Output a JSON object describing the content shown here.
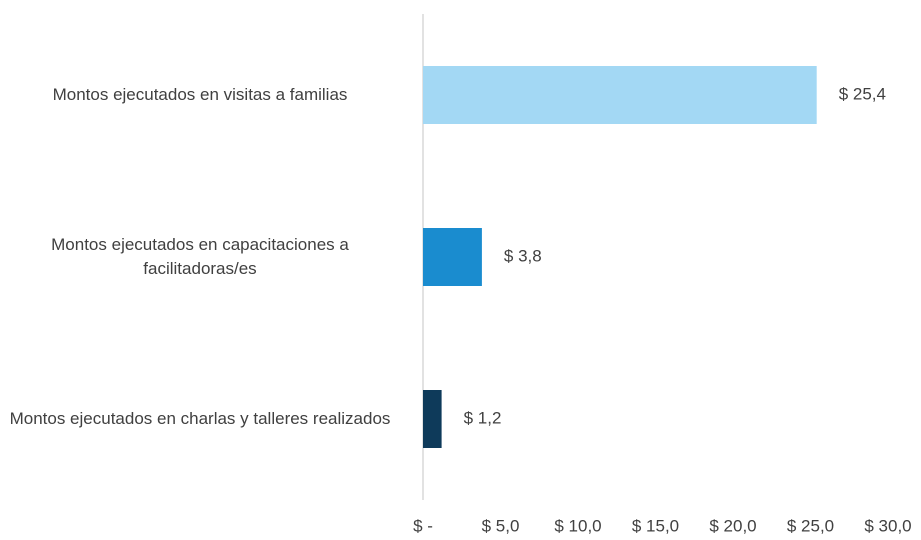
{
  "chart_data": {
    "type": "barh",
    "categories": [
      "Montos ejecutados en visitas a familias",
      "Montos ejecutados en capacitaciones a facilitadoras/es",
      "Montos ejecutados en charlas y talleres realizados"
    ],
    "values": [
      25.4,
      3.8,
      1.2
    ],
    "value_labels": [
      "$ 25,4",
      "$ 3,8",
      "$ 1,2"
    ],
    "colors": [
      "#a3d8f4",
      "#1a8ccf",
      "#0e3a5a"
    ],
    "xlim": [
      0,
      30
    ],
    "xticks": [
      {
        "value": 0,
        "label": "$ -"
      },
      {
        "value": 5,
        "label": "$ 5,0"
      },
      {
        "value": 10,
        "label": "$ 10,0"
      },
      {
        "value": 15,
        "label": "$ 15,0"
      },
      {
        "value": 20,
        "label": "$ 20,0"
      },
      {
        "value": 25,
        "label": "$ 25,0"
      },
      {
        "value": 30,
        "label": "$ 30,0"
      }
    ]
  }
}
